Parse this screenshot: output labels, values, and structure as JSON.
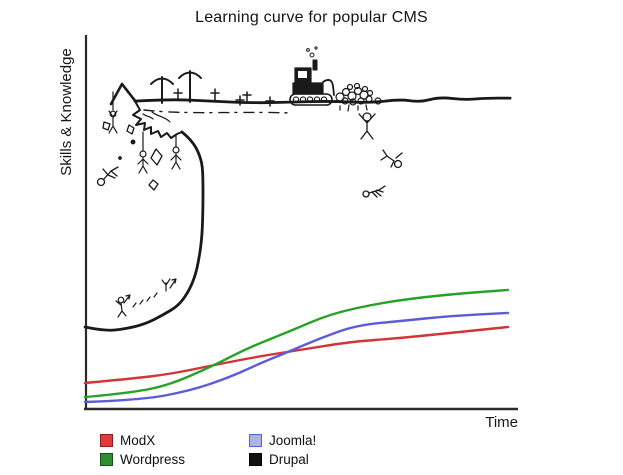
{
  "title": "Learning curve for popular CMS",
  "axes": {
    "x_label": "Time",
    "y_label": "Skills & Knowledge"
  },
  "legend": {
    "position": "bottom",
    "items": [
      {
        "label": "ModX",
        "color": "#e03a3a",
        "border": "#8f1d1d"
      },
      {
        "label": "Joomla!",
        "color": "#aab2ef",
        "border": "#5a64c8"
      },
      {
        "label": "Wordpress",
        "color": "#2e8f2e",
        "border": "#174f17"
      },
      {
        "label": "Drupal",
        "color": "#101010",
        "border": "#000000"
      }
    ]
  },
  "chart_data": {
    "type": "line",
    "title": "Learning curve for popular CMS",
    "xlabel": "Time",
    "ylabel": "Skills & Knowledge",
    "axis_ranges": {
      "x": [
        0,
        100
      ],
      "y": [
        0,
        100
      ]
    },
    "grid": false,
    "tick_labels": "none (conceptual joke chart, no numeric ticks)",
    "legend_position": "bottom",
    "series": [
      {
        "name": "ModX",
        "color": "#d23535",
        "points": [
          [
            0,
            7.0
          ],
          [
            10.6,
            8.1
          ],
          [
            20.1,
            9.4
          ],
          [
            30.7,
            11.9
          ],
          [
            40.2,
            14.0
          ],
          [
            50.8,
            15.9
          ],
          [
            62.6,
            18.1
          ],
          [
            74.5,
            19.1
          ],
          [
            86.3,
            20.5
          ],
          [
            100,
            22.1
          ]
        ]
      },
      {
        "name": "Wordpress",
        "color": "#27a127",
        "points": [
          [
            0,
            3.2
          ],
          [
            10.6,
            4.3
          ],
          [
            20.1,
            6.5
          ],
          [
            30.7,
            11.9
          ],
          [
            39.0,
            16.7
          ],
          [
            48.5,
            21.0
          ],
          [
            57.9,
            25.6
          ],
          [
            69.7,
            28.6
          ],
          [
            83.9,
            30.7
          ],
          [
            100,
            32.1
          ]
        ]
      },
      {
        "name": "Joomla!",
        "color": "#5d5cd8",
        "points": [
          [
            0,
            1.9
          ],
          [
            13.0,
            2.4
          ],
          [
            24.8,
            4.9
          ],
          [
            34.3,
            8.6
          ],
          [
            42.6,
            12.9
          ],
          [
            46.8,
            14.8
          ],
          [
            55.6,
            19.1
          ],
          [
            64.3,
            22.6
          ],
          [
            74.5,
            23.7
          ],
          [
            86.3,
            25.1
          ],
          [
            100,
            25.9
          ]
        ]
      },
      {
        "name": "Drupal",
        "color": "#191919",
        "style": "hand-drawn vertical cliff with overhang, then high plateau",
        "segments": [
          [
            [
              0,
              22.1
            ],
            [
              4.7,
              21.0
            ],
            [
              9.5,
              21.6
            ],
            [
              14.2,
              22.9
            ],
            [
              18.4,
              25.3
            ],
            [
              22.0,
              27.8
            ],
            [
              24.3,
              31.3
            ],
            [
              26.0,
              35.6
            ],
            [
              27.0,
              40.7
            ],
            [
              27.7,
              46.9
            ],
            [
              27.9,
              55.0
            ],
            [
              27.9,
              61.7
            ],
            [
              27.7,
              66.3
            ],
            [
              26.5,
              70.1
            ],
            [
              24.8,
              72.8
            ],
            [
              22.9,
              74.7
            ]
          ],
          [
            [
              11.8,
              83.0
            ],
            [
              20.0,
              83.5
            ],
            [
              29.6,
              83.0
            ],
            [
              39.0,
              82.5
            ],
            [
              48.5,
              82.7
            ],
            [
              57.9,
              83.0
            ],
            [
              67.4,
              82.5
            ],
            [
              74.5,
              83.5
            ],
            [
              79.2,
              82.7
            ],
            [
              83.9,
              84.1
            ],
            [
              89.8,
              83.3
            ],
            [
              94.6,
              83.8
            ],
            [
              100.5,
              83.8
            ]
          ]
        ]
      }
    ],
    "annotations": [
      "grave crosses planted along the Drupal plateau edge",
      "two tall drooping crosses on the cliff top",
      "bulldozer pushing a pile of rocks over the edge",
      "stick figures falling off the cliff (arms up, tumbling, landed flat)",
      "stick figures hanging from ropes under the overhang",
      "figure hanging from a rope off the summit peak",
      "falling rocks beside the cliff face",
      "tiny climbers with upward arrows at the base of the cliff"
    ]
  }
}
